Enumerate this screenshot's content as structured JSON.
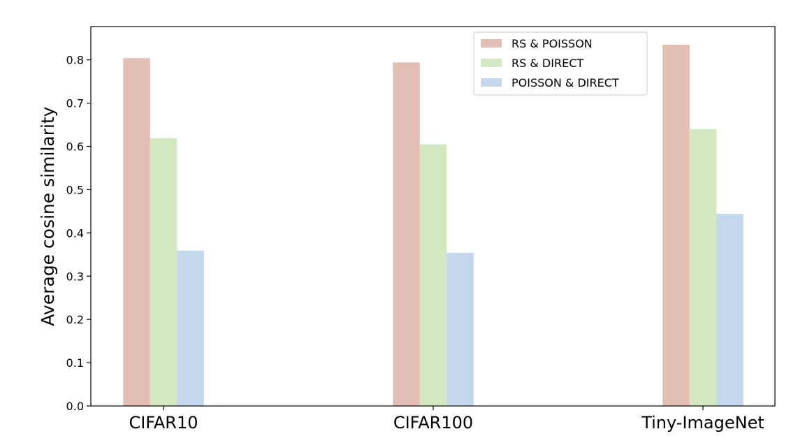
{
  "chart_data": {
    "type": "bar",
    "title": "",
    "xlabel": "",
    "ylabel": "Average cosine similarity",
    "categories": [
      "CIFAR10",
      "CIFAR100",
      "Tiny-ImageNet"
    ],
    "series": [
      {
        "name": "RS & POISSON",
        "values": [
          0.804,
          0.794,
          0.835
        ],
        "color": "#e3beb4"
      },
      {
        "name": "RS & DIRECT",
        "values": [
          0.619,
          0.605,
          0.64
        ],
        "color": "#d3e7c0"
      },
      {
        "name": "POISSON & DIRECT",
        "values": [
          0.359,
          0.354,
          0.444
        ],
        "color": "#c4d7ec"
      }
    ],
    "ylim": [
      0,
      0.877
    ],
    "yticks": [
      "0.0",
      "0.1",
      "0.2",
      "0.3",
      "0.4",
      "0.5",
      "0.6",
      "0.7",
      "0.8"
    ],
    "grid": false,
    "legend_position": "top-right"
  }
}
